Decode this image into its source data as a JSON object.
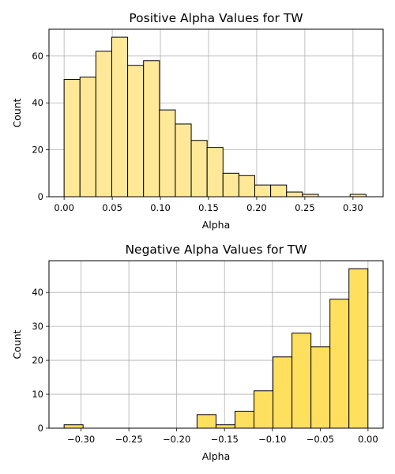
{
  "chart_data": [
    {
      "type": "bar",
      "title": "Positive Alpha Values for TW",
      "xlabel": "Alpha",
      "ylabel": "Count",
      "xlim": [
        -0.0157,
        0.3313
      ],
      "ylim": [
        0,
        71.4
      ],
      "xticks": [
        0.0,
        0.05,
        0.1,
        0.15,
        0.2,
        0.25,
        0.3
      ],
      "xtick_labels": [
        "0.00",
        "0.05",
        "0.10",
        "0.15",
        "0.20",
        "0.25",
        "0.30"
      ],
      "yticks": [
        0,
        20,
        40,
        60
      ],
      "ytick_labels": [
        "0",
        "20",
        "40",
        "60"
      ],
      "bins_start": 0.0,
      "bin_width": 0.0165,
      "values": [
        50,
        51,
        62,
        68,
        56,
        58,
        37,
        31,
        24,
        21,
        10,
        9,
        5,
        5,
        2,
        1,
        0,
        0,
        1
      ],
      "fill_color": "#FFE999",
      "edge_color": "#000000",
      "grid": true
    },
    {
      "type": "bar",
      "title": "Negative Alpha Values for TW",
      "xlabel": "Alpha",
      "ylabel": "Count",
      "xlim": [
        -0.3335,
        0.0158
      ],
      "ylim": [
        0,
        49.35
      ],
      "xticks": [
        -0.3,
        -0.25,
        -0.2,
        -0.15,
        -0.1,
        -0.05,
        0.0
      ],
      "xtick_labels": [
        "−0.30",
        "−0.25",
        "−0.20",
        "−0.15",
        "−0.10",
        "−0.05",
        "0.00"
      ],
      "yticks": [
        0,
        10,
        20,
        30,
        40
      ],
      "ytick_labels": [
        "0",
        "10",
        "20",
        "30",
        "40"
      ],
      "bins_start": -0.3177,
      "bin_width": 0.01985,
      "values": [
        1,
        0,
        0,
        0,
        0,
        0,
        0,
        4,
        1,
        5,
        11,
        21,
        28,
        24,
        38,
        47
      ],
      "fill_color": "#FFDF5E",
      "edge_color": "#000000",
      "grid": true
    }
  ]
}
